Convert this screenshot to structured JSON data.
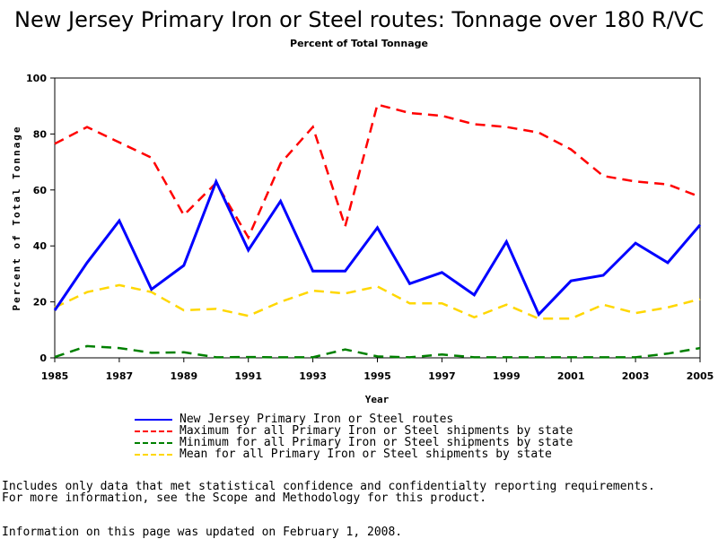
{
  "chart_data": {
    "type": "line",
    "title": "New Jersey Primary Iron or Steel routes: Tonnage over 180 R/VC",
    "subtitle": "Percent of Total Tonnage",
    "xlabel": "Year",
    "ylabel": "Percent of Total Tonnage",
    "xlim": [
      1985,
      2005
    ],
    "ylim": [
      0,
      100
    ],
    "x": [
      1985,
      1986,
      1987,
      1988,
      1989,
      1990,
      1991,
      1992,
      1993,
      1994,
      1995,
      1996,
      1997,
      1998,
      1999,
      2000,
      2001,
      2002,
      2003,
      2004,
      2005
    ],
    "x_ticks": [
      "1985",
      "1987",
      "1989",
      "1991",
      "1993",
      "1995",
      "1997",
      "1999",
      "2001",
      "2003",
      "2005"
    ],
    "y_ticks": [
      "0",
      "20",
      "40",
      "60",
      "80",
      "100"
    ],
    "legend_position": "bottom",
    "series": [
      {
        "name": "New Jersey Primary Iron or Steel routes",
        "color": "#0000ff",
        "style": "solid",
        "values": [
          17,
          34,
          49,
          24.5,
          33,
          63,
          38.5,
          56,
          31,
          31,
          46.5,
          26.5,
          30.5,
          22.5,
          41.5,
          15.5,
          27.5,
          29.5,
          41,
          34,
          47.5
        ]
      },
      {
        "name": "Maximum for all Primary Iron or Steel shipments by state",
        "color": "#ff0000",
        "style": "dashed",
        "values": [
          76.5,
          82.5,
          77,
          71.5,
          51,
          62.5,
          43,
          69.5,
          82.5,
          47,
          90.5,
          87.5,
          86.5,
          83.5,
          82.5,
          80.5,
          74.5,
          65,
          63,
          62,
          57.5
        ]
      },
      {
        "name": "Minimum for all Primary Iron or Steel shipments by state",
        "color": "#008000",
        "style": "dashed",
        "values": [
          0.3,
          4.2,
          3.5,
          1.8,
          2,
          0.2,
          0.3,
          0.2,
          0.2,
          3,
          0.5,
          0.2,
          1.2,
          0.2,
          0.2,
          0.2,
          0.2,
          0.2,
          0.2,
          1.5,
          3.5
        ]
      },
      {
        "name": "Mean for all Primary Iron or Steel shipments by state",
        "color": "#ffd700",
        "style": "dashed",
        "values": [
          18,
          23.5,
          26,
          23.5,
          17,
          17.5,
          15,
          20,
          24,
          23,
          25.5,
          19.5,
          19.5,
          14.5,
          19,
          14,
          14,
          19,
          16,
          18,
          21
        ]
      }
    ]
  },
  "notes": {
    "line1": "Includes only data that met statistical confidence and confidentialty reporting requirements.",
    "line2": "For more information, see the Scope and Methodology for this product.",
    "updated": "Information on this page was updated on February 1, 2008."
  }
}
